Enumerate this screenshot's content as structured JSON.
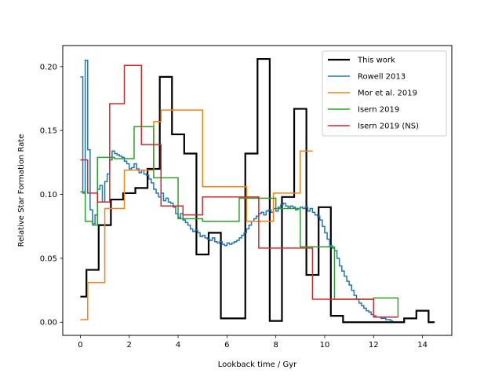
{
  "chart_data": {
    "type": "line",
    "step": true,
    "title": "",
    "xlabel": "Lookback time / Gyr",
    "ylabel": "Relative Star Formation Rate",
    "xlim": [
      -0.72,
      15.2
    ],
    "ylim": [
      -0.0103,
      0.2165
    ],
    "xticks": [
      0,
      2,
      4,
      6,
      8,
      10,
      12,
      14
    ],
    "xtick_labels": [
      "0",
      "2",
      "4",
      "6",
      "8",
      "10",
      "12",
      "14"
    ],
    "yticks": [
      0.0,
      0.05,
      0.1,
      0.15,
      0.2
    ],
    "ytick_labels": [
      "0.00",
      "0.05",
      "0.10",
      "0.15",
      "0.20"
    ],
    "grid": false,
    "legend_position": "top-right",
    "series": [
      {
        "name": "This work",
        "color": "#000000",
        "width": 2.2,
        "edges": [
          0.0,
          0.25,
          0.75,
          1.25,
          1.75,
          2.25,
          2.75,
          3.25,
          3.75,
          4.25,
          4.75,
          5.25,
          5.75,
          6.75,
          7.25,
          7.75,
          8.25,
          8.75,
          9.25,
          9.75,
          10.25,
          10.75,
          11.25,
          11.75,
          12.25,
          12.75,
          13.25,
          13.75,
          14.25,
          14.5
        ],
        "values": [
          0.02,
          0.041,
          0.076,
          0.096,
          0.101,
          0.105,
          0.12,
          0.192,
          0.147,
          0.132,
          0.053,
          0.07,
          0.003,
          0.132,
          0.206,
          0.001,
          0.098,
          0.167,
          0.037,
          0.09,
          0.005,
          0.0,
          0.0,
          0.0,
          0.0,
          0.0,
          0.003,
          0.009,
          0.0
        ]
      },
      {
        "name": "Rowell 2013",
        "color": "#1f77b4",
        "width": 1.5,
        "edges": [
          0.0,
          0.1,
          0.2,
          0.3,
          0.4,
          0.5,
          0.6,
          0.7,
          0.8,
          0.9,
          1.0,
          1.1,
          1.2,
          1.3,
          1.4,
          1.5,
          1.6,
          1.7,
          1.8,
          1.9,
          2.0,
          2.1,
          2.2,
          2.3,
          2.4,
          2.5,
          2.6,
          2.7,
          2.8,
          2.9,
          3.0,
          3.1,
          3.2,
          3.3,
          3.4,
          3.5,
          3.6,
          3.7,
          3.8,
          3.9,
          4.0,
          4.1,
          4.2,
          4.3,
          4.4,
          4.5,
          4.6,
          4.7,
          4.8,
          4.9,
          5.0,
          5.1,
          5.2,
          5.3,
          5.4,
          5.5,
          5.6,
          5.7,
          5.8,
          5.9,
          6.0,
          6.1,
          6.2,
          6.3,
          6.4,
          6.5,
          6.6,
          6.7,
          6.8,
          6.9,
          7.0,
          7.1,
          7.2,
          7.3,
          7.4,
          7.5,
          7.6,
          7.7,
          7.8,
          7.9,
          8.0,
          8.1,
          8.2,
          8.3,
          8.4,
          8.5,
          8.6,
          8.7,
          8.8,
          8.9,
          9.0,
          9.1,
          9.2,
          9.3,
          9.4,
          9.5,
          9.6,
          9.7,
          9.8,
          9.9,
          10.0,
          10.1,
          10.2,
          10.3,
          10.4,
          10.5,
          10.6,
          10.7,
          10.8,
          10.9,
          11.0,
          11.1,
          11.2,
          11.3,
          11.4,
          11.5,
          11.6,
          11.7,
          11.8,
          11.9,
          12.0,
          12.1,
          12.2,
          12.3,
          12.4,
          12.5,
          12.6,
          12.7,
          12.8
        ],
        "values": [
          0.192,
          0.101,
          0.205,
          0.135,
          0.088,
          0.077,
          0.084,
          0.104,
          0.107,
          0.094,
          0.11,
          0.116,
          0.127,
          0.134,
          0.132,
          0.131,
          0.13,
          0.129,
          0.126,
          0.124,
          0.12,
          0.121,
          0.124,
          0.12,
          0.117,
          0.119,
          0.116,
          0.115,
          0.112,
          0.109,
          0.104,
          0.101,
          0.098,
          0.101,
          0.095,
          0.097,
          0.094,
          0.093,
          0.09,
          0.085,
          0.082,
          0.085,
          0.08,
          0.078,
          0.076,
          0.073,
          0.071,
          0.072,
          0.07,
          0.067,
          0.068,
          0.066,
          0.065,
          0.064,
          0.066,
          0.063,
          0.062,
          0.063,
          0.061,
          0.06,
          0.062,
          0.061,
          0.062,
          0.063,
          0.064,
          0.066,
          0.068,
          0.07,
          0.073,
          0.076,
          0.079,
          0.081,
          0.083,
          0.085,
          0.086,
          0.084,
          0.087,
          0.088,
          0.086,
          0.089,
          0.087,
          0.09,
          0.092,
          0.093,
          0.091,
          0.09,
          0.091,
          0.09,
          0.088,
          0.089,
          0.09,
          0.089,
          0.09,
          0.087,
          0.089,
          0.086,
          0.084,
          0.083,
          0.08,
          0.075,
          0.07,
          0.065,
          0.06,
          0.058,
          0.056,
          0.05,
          0.044,
          0.04,
          0.036,
          0.032,
          0.029,
          0.025,
          0.021,
          0.018,
          0.015,
          0.013,
          0.011,
          0.009,
          0.008,
          0.006,
          0.005,
          0.004,
          0.004,
          0.003,
          0.003,
          0.002,
          0.002,
          0.001
        ]
      },
      {
        "name": "Mor et al. 2019",
        "color": "#ff7f0e",
        "width": 1.5,
        "edges": [
          0.0,
          0.3,
          1.0,
          1.8,
          3.0,
          3.3,
          5.0,
          6.8,
          7.9,
          9.0,
          9.5
        ],
        "values": [
          0.002,
          0.031,
          0.089,
          0.119,
          0.157,
          0.166,
          0.106,
          0.079,
          0.101,
          0.134
        ]
      },
      {
        "name": "Isern 2019",
        "color": "#2ca02c",
        "width": 1.5,
        "edges": [
          0.0,
          0.2,
          0.5,
          0.7,
          1.4,
          2.2,
          3.0,
          4.0,
          5.0,
          6.5,
          8.0,
          9.0,
          10.4,
          11.0,
          12.0,
          13.0
        ],
        "values": [
          0.102,
          0.079,
          0.076,
          0.129,
          0.128,
          0.153,
          0.113,
          0.081,
          0.079,
          0.097,
          0.089,
          0.059,
          0.018,
          0.018,
          0.019,
          0.004
        ]
      },
      {
        "name": "Isern 2019 (NS)",
        "color": "#d62728",
        "width": 1.5,
        "edges": [
          0.0,
          0.3,
          0.7,
          1.2,
          1.8,
          2.5,
          3.3,
          4.2,
          5.0,
          6.5,
          7.3,
          8.0,
          9.5,
          11.0,
          12.0,
          13.0
        ],
        "values": [
          0.127,
          0.101,
          0.094,
          0.171,
          0.201,
          0.139,
          0.091,
          0.084,
          0.098,
          0.098,
          0.058,
          0.058,
          0.018,
          0.018,
          0.004,
          0.004
        ]
      }
    ]
  }
}
